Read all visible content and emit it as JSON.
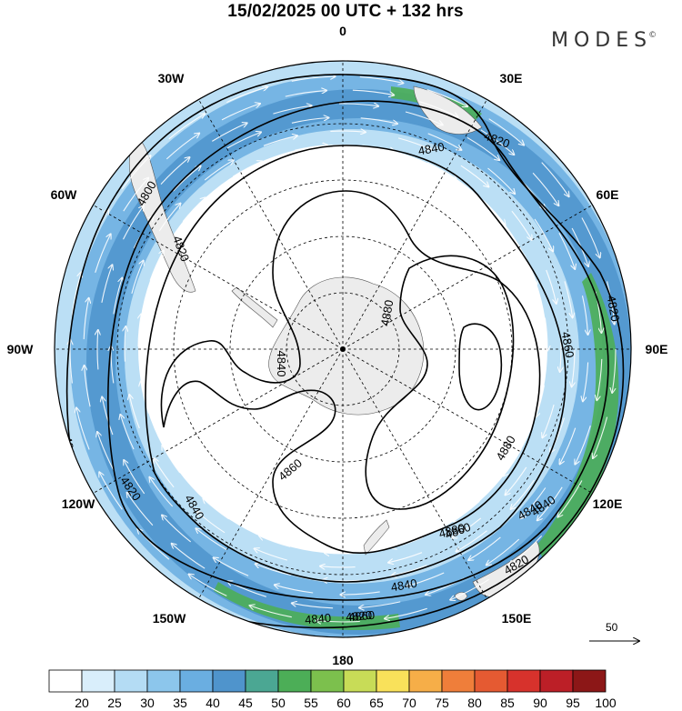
{
  "title": "15/02/2025  00 UTC  + 132 hrs",
  "brand": {
    "name": "MODES",
    "mark": "©"
  },
  "longitudes": [
    "0",
    "30E",
    "60E",
    "90E",
    "120E",
    "150E",
    "180",
    "150W",
    "120W",
    "90W",
    "60W",
    "30W"
  ],
  "contours": [
    {
      "label": "4800"
    },
    {
      "label": "4820"
    },
    {
      "label": "4840"
    },
    {
      "label": "4860"
    },
    {
      "label": "4880"
    }
  ],
  "contour_labels": [
    "4800",
    "4820",
    "4840",
    "4820",
    "4800",
    "4820",
    "4840",
    "4840",
    "4860",
    "4880",
    "4860",
    "4880",
    "4840",
    "4860",
    "4820",
    "4840",
    "4820",
    "4860",
    "4880",
    "4820",
    "4840",
    "4840"
  ],
  "colorbar": {
    "ticks": [
      "20",
      "25",
      "30",
      "35",
      "40",
      "45",
      "50",
      "55",
      "60",
      "65",
      "70",
      "75",
      "80",
      "85",
      "90",
      "95",
      "100"
    ],
    "colors": [
      "#ffffff",
      "#d9eefb",
      "#b4dcf4",
      "#8cc6ec",
      "#6aaee1",
      "#4f94cc",
      "#4ba793",
      "#4cae57",
      "#7cc04d",
      "#c8dc57",
      "#f9e15a",
      "#f6ae48",
      "#ef7e3a",
      "#e55a32",
      "#d7322c",
      "#bc1f27",
      "#8c1717"
    ]
  },
  "reference_vector": {
    "label": "50"
  },
  "colors": {
    "land": "#ececec",
    "jet_light": "#b4dcf4",
    "jet_mid": "#6aaee1",
    "jet_strong": "#4f94cc",
    "jet_core": "#4cae57"
  }
}
